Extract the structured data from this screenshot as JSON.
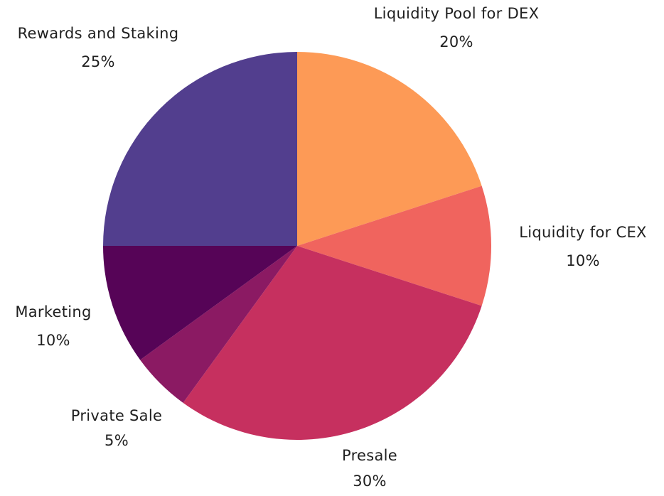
{
  "chart_data": {
    "type": "pie",
    "slices": [
      {
        "label": "Liquidity Pool for DEX",
        "value": 20,
        "value_label": "20%",
        "color": "#FD9A56"
      },
      {
        "label": "Liquidity for CEX",
        "value": 10,
        "value_label": "10%",
        "color": "#F0645E"
      },
      {
        "label": "Presale",
        "value": 30,
        "value_label": "30%",
        "color": "#C6305F"
      },
      {
        "label": "Private Sale",
        "value": 5,
        "value_label": "5%",
        "color": "#8B1A63"
      },
      {
        "label": "Marketing",
        "value": 10,
        "value_label": "10%",
        "color": "#560457"
      },
      {
        "label": "Rewards and Staking",
        "value": 25,
        "value_label": "25%",
        "color": "#523E8E"
      }
    ],
    "start_angle": "12 o'clock",
    "direction": "clockwise",
    "legend": "none"
  }
}
